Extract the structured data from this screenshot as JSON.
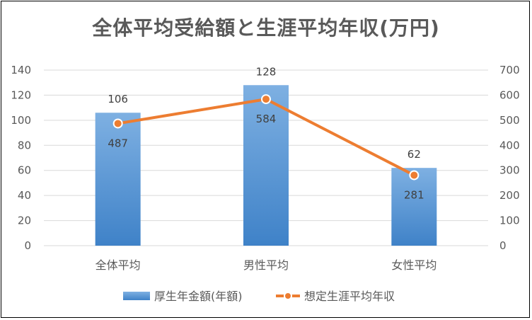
{
  "chart_data": {
    "type": "bar",
    "title": "全体平均受給額と生涯平均年収(万円)",
    "categories": [
      "全体平均",
      "男性平均",
      "女性平均"
    ],
    "series": [
      {
        "name": "厚生年金額(年額)",
        "type": "bar",
        "axis": "left",
        "values": [
          106,
          128,
          62
        ],
        "color": "#5B9BD5"
      },
      {
        "name": "想定生涯平均年収",
        "type": "line",
        "axis": "right",
        "values": [
          487,
          584,
          281
        ],
        "color": "#ED7D31"
      }
    ],
    "ylim_left": [
      0,
      140
    ],
    "yticks_left": [
      0,
      20,
      40,
      60,
      80,
      100,
      120,
      140
    ],
    "ylim_right": [
      0,
      700
    ],
    "yticks_right": [
      0,
      100,
      200,
      300,
      400,
      500,
      600,
      700
    ],
    "grid": true,
    "legend_position": "bottom"
  }
}
